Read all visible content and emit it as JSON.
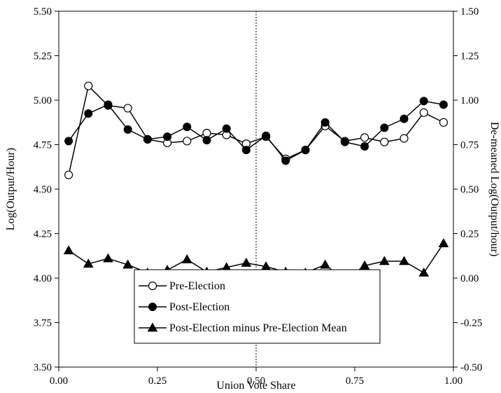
{
  "chart_data": {
    "type": "line",
    "xlabel": "Union Vote Share",
    "ylabel_left": "Log(Output/Hour)",
    "ylabel_right": "De-meaned Log(Output/hour)",
    "xlim": [
      0.0,
      1.0
    ],
    "ylim_left": [
      3.5,
      5.5
    ],
    "ylim_right": [
      -0.5,
      1.5
    ],
    "x_ticks": [
      "0.00",
      "0.25",
      "0.50",
      "0.75",
      "1.00"
    ],
    "x_tick_values": [
      0.0,
      0.25,
      0.5,
      0.75,
      1.0
    ],
    "y_ticks_left": [
      "3.50",
      "3.75",
      "4.00",
      "4.25",
      "4.50",
      "4.75",
      "5.00",
      "5.25",
      "5.50"
    ],
    "y_tick_values_left": [
      3.5,
      3.75,
      4.0,
      4.25,
      4.5,
      4.75,
      5.0,
      5.25,
      5.5
    ],
    "y_ticks_right": [
      "-0.50",
      "-0.25",
      "0.00",
      "0.25",
      "0.50",
      "0.75",
      "1.00",
      "1.25",
      "1.50"
    ],
    "y_tick_values_right": [
      -0.5,
      -0.25,
      0.0,
      0.25,
      0.5,
      0.75,
      1.0,
      1.25,
      1.5
    ],
    "reference_line_x": 0.5,
    "legend_position": "bottom-center",
    "x": [
      0.025,
      0.075,
      0.125,
      0.175,
      0.225,
      0.275,
      0.325,
      0.375,
      0.425,
      0.475,
      0.525,
      0.575,
      0.625,
      0.675,
      0.725,
      0.775,
      0.825,
      0.875,
      0.925,
      0.975
    ],
    "series": [
      {
        "name": "Pre-Election",
        "axis": "left",
        "marker": "open-circle",
        "values": [
          4.58,
          5.08,
          4.97,
          4.955,
          4.78,
          4.76,
          4.77,
          4.815,
          4.805,
          4.755,
          4.795,
          4.67,
          4.72,
          4.855,
          4.77,
          4.79,
          4.765,
          4.785,
          4.93,
          4.875
        ]
      },
      {
        "name": "Post-Election",
        "axis": "left",
        "marker": "filled-circle",
        "values": [
          4.77,
          4.925,
          4.975,
          4.835,
          4.78,
          4.795,
          4.85,
          4.775,
          4.84,
          4.72,
          4.8,
          4.66,
          4.72,
          4.875,
          4.765,
          4.74,
          4.845,
          4.895,
          4.995,
          4.975
        ]
      },
      {
        "name": "Post-Election minus Pre-Election Mean",
        "axis": "right",
        "marker": "filled-triangle",
        "values": [
          0.155,
          0.08,
          0.11,
          0.075,
          0.03,
          0.045,
          0.105,
          0.035,
          0.06,
          0.085,
          0.065,
          0.035,
          0.03,
          0.075,
          -0.01,
          0.07,
          0.095,
          0.095,
          0.03,
          0.195
        ]
      }
    ]
  }
}
